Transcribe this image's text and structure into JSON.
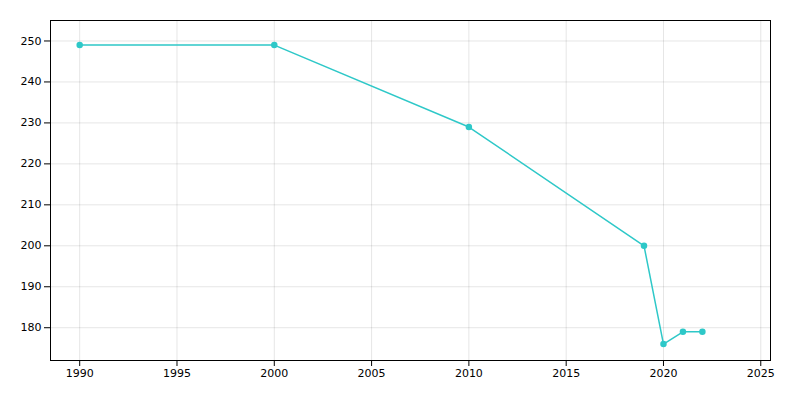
{
  "chart_data": {
    "type": "line",
    "x": [
      1990,
      2000,
      2010,
      2019,
      2020,
      2021,
      2022
    ],
    "values": [
      249,
      249,
      229,
      200,
      176,
      179,
      179
    ],
    "color": "#2ec8c8",
    "marker": "circle",
    "xlim": [
      1988.5,
      2025.5
    ],
    "xticks": [
      1990,
      1995,
      2000,
      2005,
      2010,
      2015,
      2020,
      2025
    ],
    "ylim": [
      172,
      255
    ],
    "yticks": [
      180,
      190,
      200,
      210,
      220,
      230,
      240,
      250
    ],
    "grid": true
  }
}
